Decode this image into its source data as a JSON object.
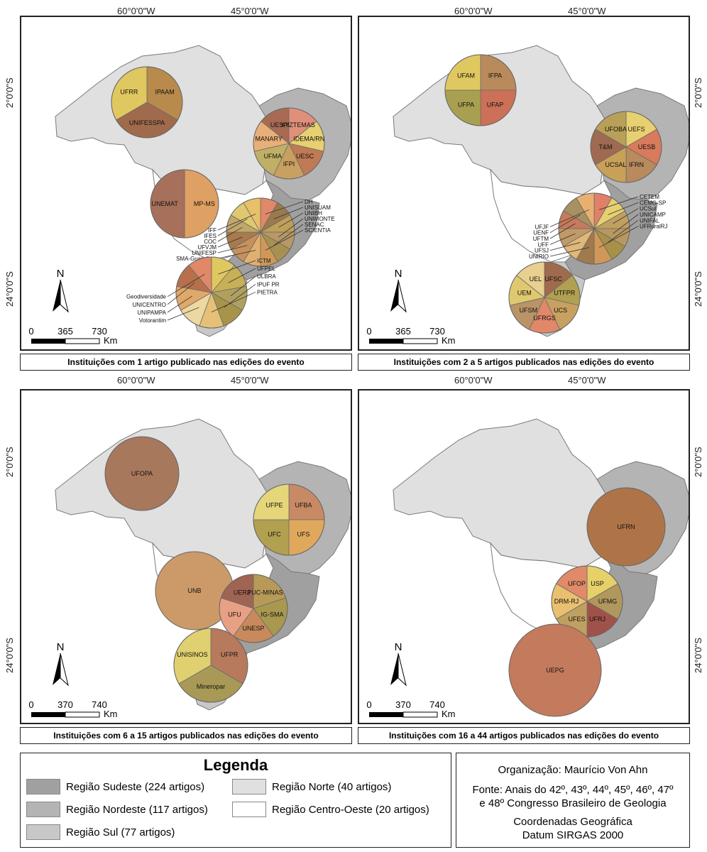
{
  "coords": {
    "lon_a": "60°0'0\"W",
    "lon_b": "45°0'0\"W",
    "lat_a": "2°0'0\"S",
    "lat_b": "24°0'0\"S"
  },
  "north_label": "N",
  "scale_unit": "Km",
  "colors": {
    "sudeste": "#a0a0a0",
    "nordeste": "#b4b4b4",
    "sul": "#c8c8c8",
    "norte": "#e0e0e0",
    "centro_oeste": "#ffffff"
  },
  "panels": [
    {
      "caption": "Instituições com 1 artigo publicado nas edições do evento",
      "scale_ticks": [
        "0",
        "365",
        "730"
      ],
      "pies": [
        {
          "labels": [
            "IPAAM",
            "UNIFESSPA",
            "UFRR"
          ],
          "colors": [
            "#b88a4c",
            "#a06a4c",
            "#e0c860"
          ]
        },
        {
          "labels": [
            "XYZTEMAS",
            "IDEMA/RN",
            "UESC",
            "IFPI",
            "UFMA",
            "MANARY",
            "UESPI"
          ],
          "colors": [
            "#e0907a",
            "#e6d070",
            "#c07a56",
            "#c8a060",
            "#c0b066",
            "#e8b078",
            "#a86a52"
          ]
        },
        {
          "labels": [
            "MP-MS",
            "UNEMAT"
          ],
          "colors": [
            "#dfa063",
            "#a7705a"
          ]
        },
        {
          "labels": [
            "DH",
            "UNISUAM",
            "UNIBH",
            "UNIMONTE",
            "SENAC",
            "SCIENTIA",
            "SMA-Guarulhos",
            "UNIFESP",
            "UFVJM",
            "COC",
            "IFES",
            "IFF"
          ],
          "colors": [
            "#e08868",
            "#9a7a4c",
            "#c0a058",
            "#b89866",
            "#a89050",
            "#d09858",
            "#e0b070",
            "#c8905c",
            "#a87a4c",
            "#c0a86a",
            "#e0c870",
            "#e8c068"
          ]
        },
        {
          "labels": [
            "ICTM",
            "UFPEL",
            "ULBRA",
            "IPUF PR",
            "PIETRA",
            "Votorantim",
            "UNIPAMPA",
            "UNICENTRO",
            "Geodiversidade"
          ],
          "colors": [
            "#e0c860",
            "#c8b058",
            "#b0a060",
            "#a89448",
            "#e6c078",
            "#ecd8a0",
            "#e0a86a",
            "#b8704c",
            "#e08868"
          ]
        }
      ]
    },
    {
      "caption": "Instituições com 2 a 5 artigos publicados nas edições do evento",
      "scale_ticks": [
        "0",
        "365",
        "730"
      ],
      "pies": [
        {
          "labels": [
            "IFPA",
            "UFAP",
            "UFPA",
            "UFAM"
          ],
          "colors": [
            "#b88a5c",
            "#cc7058",
            "#a8a050",
            "#e0c860"
          ]
        },
        {
          "labels": [
            "UEFS",
            "UESB",
            "IFRN",
            "UCSAL",
            "T&M",
            "UFOBA"
          ],
          "colors": [
            "#e8d070",
            "#d87a5c",
            "#b88a5c",
            "#c8a058",
            "#a06a52",
            "#b8a058"
          ]
        },
        {
          "labels": [
            "CETEM",
            "CEMG-SP",
            "UCSul",
            "UNICAMP",
            "UNIFAL",
            "UFRuralRJ",
            "UNIRIO",
            "UFSJ",
            "UFF",
            "UFTM",
            "UENF",
            "UFJF"
          ],
          "colors": [
            "#e08068",
            "#e6d070",
            "#c0a060",
            "#b89860",
            "#a89048",
            "#d09858",
            "#a07a4c",
            "#e0b878",
            "#c09a68",
            "#c87a5c",
            "#a89060",
            "#e8b070"
          ]
        },
        {
          "labels": [
            "UFSC",
            "UTFPR",
            "UCS",
            "UFRGS",
            "UFSM",
            "UEM",
            "UEL"
          ],
          "colors": [
            "#a06a4c",
            "#b0a050",
            "#c8a060",
            "#e08868",
            "#b89466",
            "#e0c870",
            "#e8d090"
          ]
        }
      ]
    },
    {
      "caption": "Instituições com 6 a 15 artigos publicados nas edições do evento",
      "scale_ticks": [
        "0",
        "370",
        "740"
      ],
      "pies": [
        {
          "labels": [
            "UFOPA"
          ],
          "colors": [
            "#a8785c"
          ]
        },
        {
          "labels": [
            "UFBA",
            "UFS",
            "UFC",
            "UFPE"
          ],
          "colors": [
            "#c88a64",
            "#e0a85c",
            "#b0a050",
            "#e6d67a"
          ]
        },
        {
          "labels": [
            "UNB"
          ],
          "colors": [
            "#cc9a68"
          ]
        },
        {
          "labels": [
            "PUC-MINAS",
            "IG-SMA",
            "UNESP",
            "UFU",
            "UERJ"
          ],
          "colors": [
            "#b89a58",
            "#a89850",
            "#c88a5c",
            "#e8a084",
            "#a06452"
          ]
        },
        {
          "labels": [
            "UFPR",
            "Mineropar",
            "UNISINOS"
          ],
          "colors": [
            "#b87a5c",
            "#a89a56",
            "#e0d070"
          ]
        }
      ]
    },
    {
      "caption": "Instituições com 16 a 44 artigos publicados nas edições do evento",
      "scale_ticks": [
        "0",
        "370",
        "740"
      ],
      "pies": [
        {
          "labels": [
            "UFRN"
          ],
          "colors": [
            "#ae7448"
          ]
        },
        {
          "labels": [
            "USP",
            "UFMG",
            "UFRJ",
            "UFES",
            "DRM-RJ",
            "UFOP"
          ],
          "colors": [
            "#e6d06a",
            "#b0985c",
            "#a0524a",
            "#c0a060",
            "#e8c070",
            "#e08a6a"
          ]
        },
        {
          "labels": [
            "UEPG"
          ],
          "colors": [
            "#c47a5c"
          ]
        }
      ]
    }
  ],
  "legend": {
    "title": "Legenda",
    "items": [
      {
        "label": "Região Sudeste (224 artigos)",
        "color": "#a0a0a0"
      },
      {
        "label": "Região Nordeste (117 artigos)",
        "color": "#b4b4b4"
      },
      {
        "label": "Região Sul (77 artigos)",
        "color": "#c8c8c8"
      },
      {
        "label": "Região Norte (40 artigos)",
        "color": "#e0e0e0"
      },
      {
        "label": "Região Centro-Oeste (20 artigos)",
        "color": "#ffffff"
      }
    ]
  },
  "credits": {
    "organizacao": "Organização: Maurício Von Ahn",
    "fonte_1": "Fonte: Anais do 42º, 43º, 44º, 45º, 46º, 47º",
    "fonte_2": "e 48º  Congresso Brasileiro de Geologia",
    "coord_1": "Coordenadas Geográfica",
    "coord_2": "Datum SIRGAS 2000"
  }
}
